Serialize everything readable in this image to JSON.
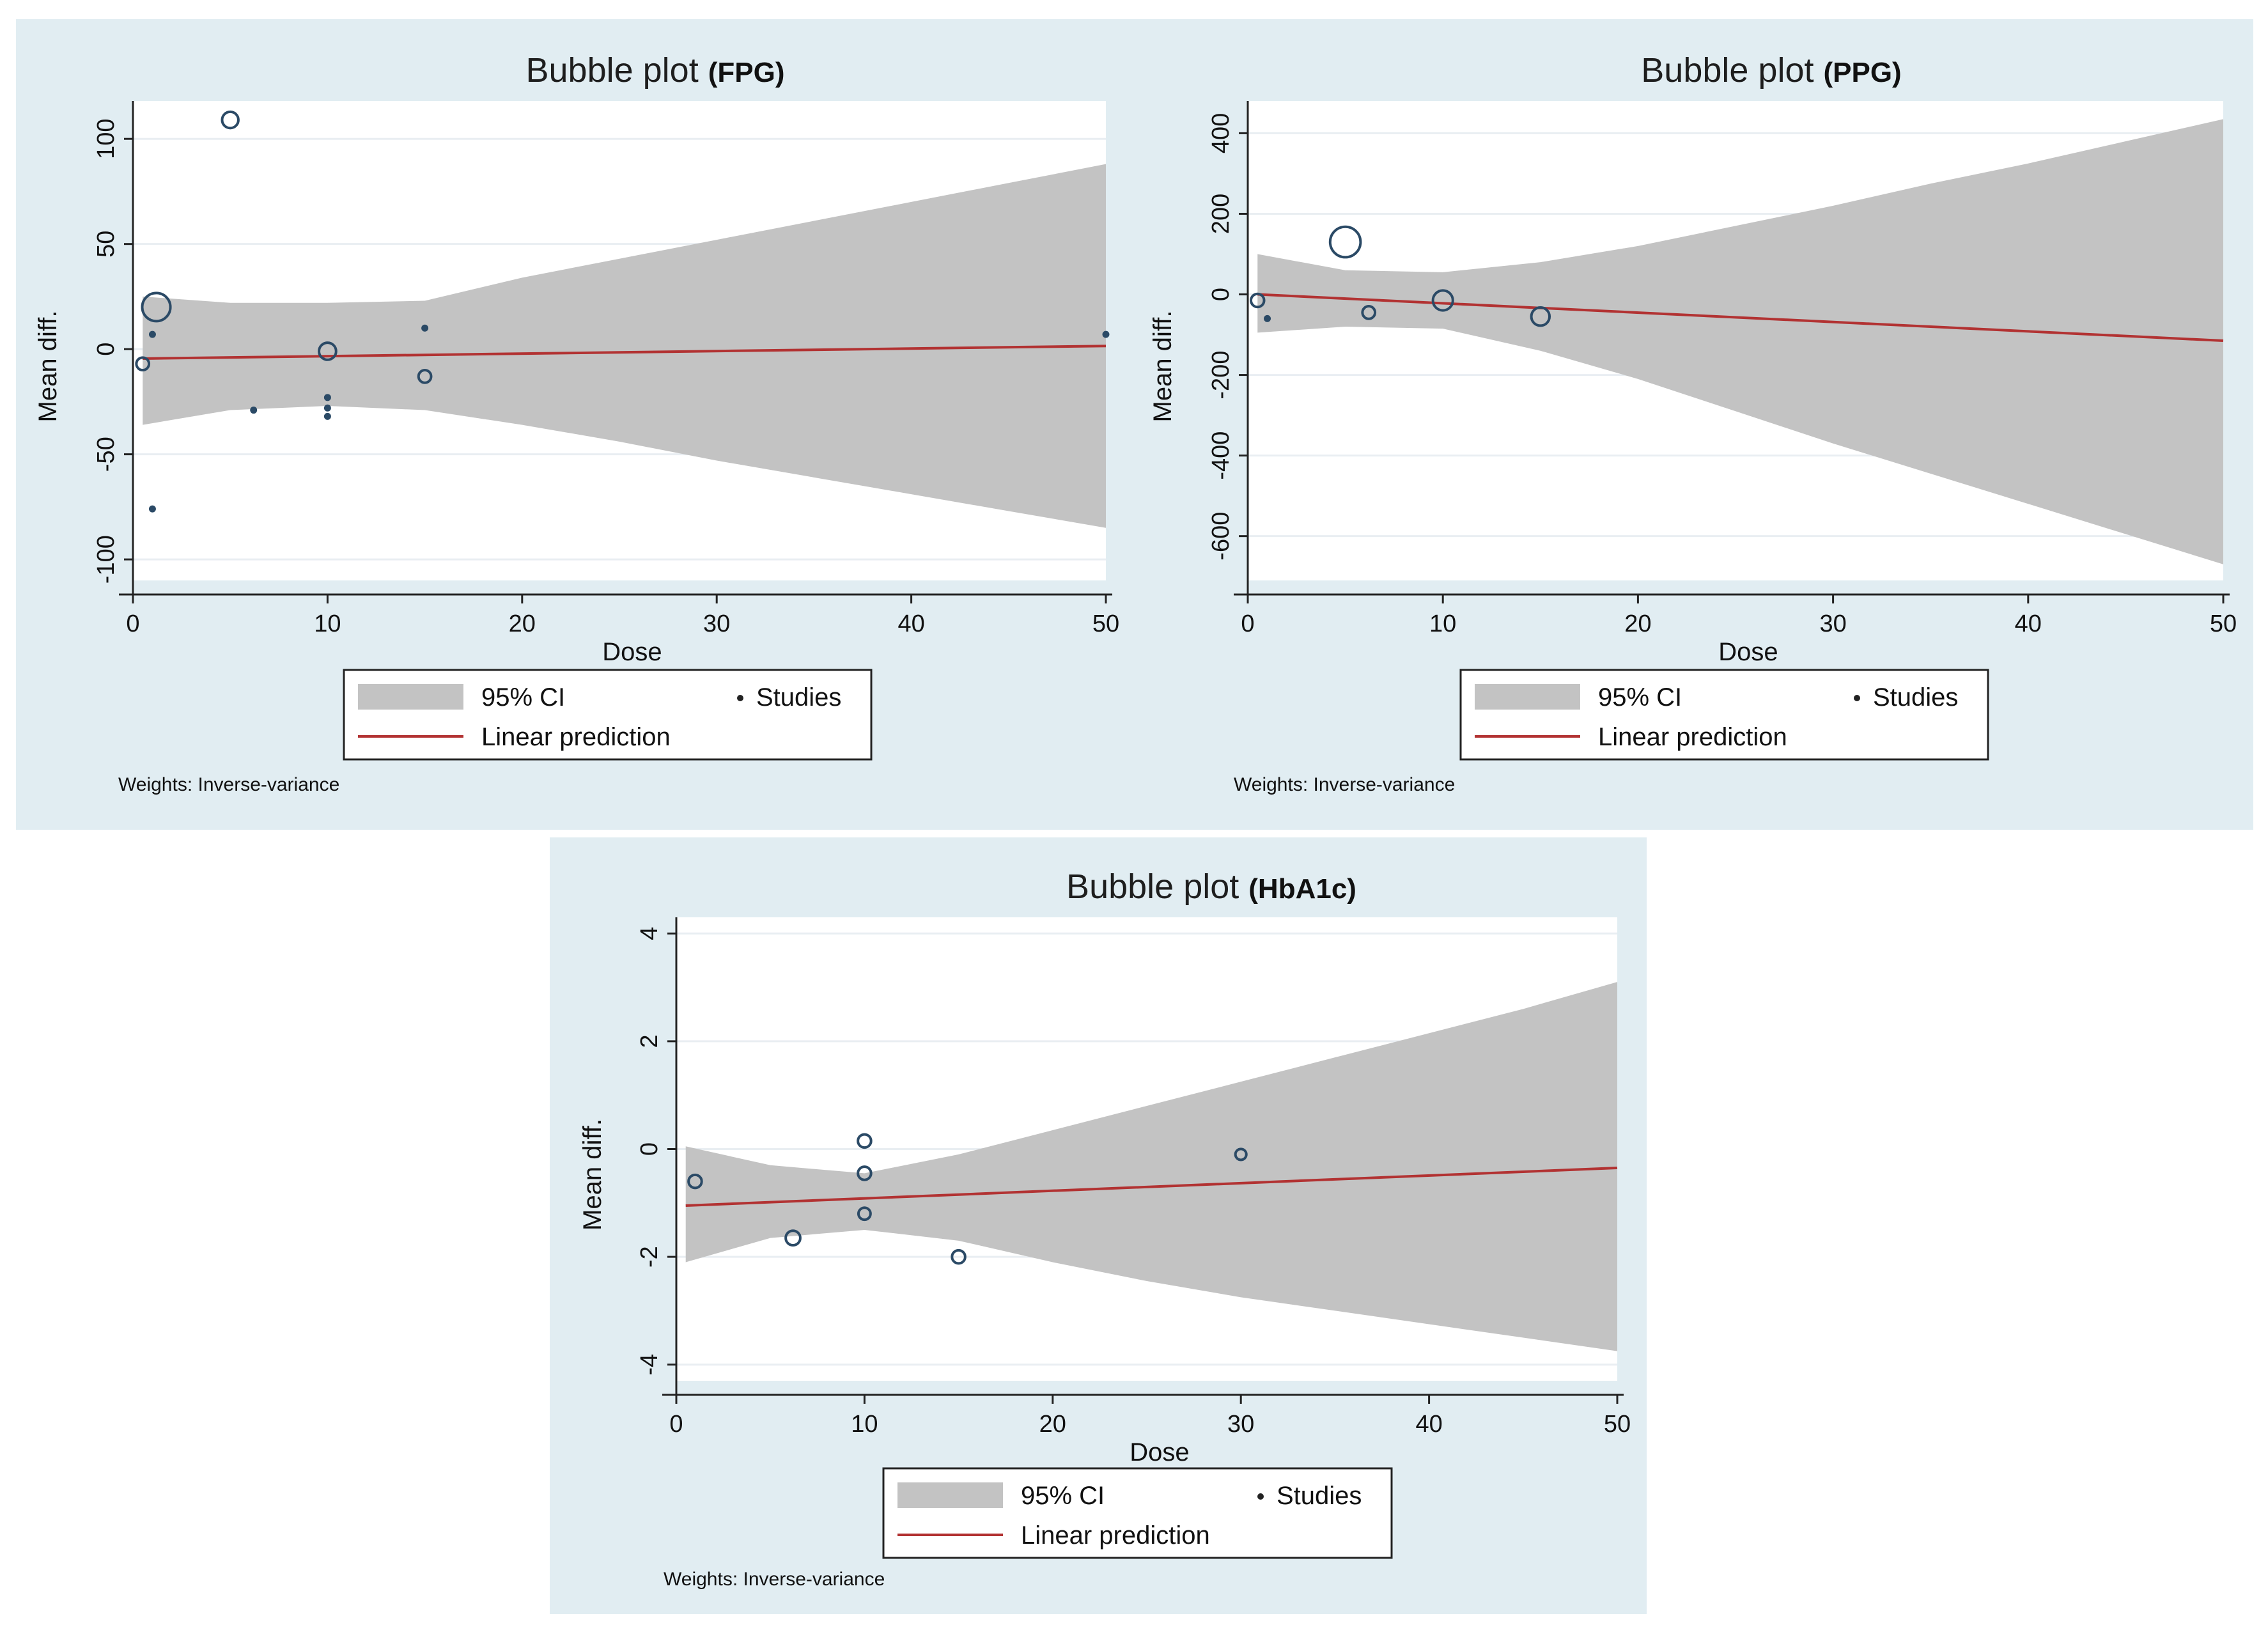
{
  "figure": {
    "colors": {
      "panel_bg": "#e1edf2",
      "plot_bg": "#ffffff",
      "ci_band": "#c3c3c3",
      "fit_line": "#b23232",
      "bubble_stroke": "#2b4a66",
      "axis": "#222222",
      "grid": "#e9eef2"
    }
  },
  "chart_data": [
    {
      "id": "fpg",
      "type": "scatter",
      "title": "Bubble plot",
      "title_suffix": "(FPG)",
      "xlabel": "Dose",
      "ylabel": "Mean diff.",
      "xlim": [
        0,
        50
      ],
      "ylim": [
        -110,
        118
      ],
      "xticks": [
        0,
        10,
        20,
        30,
        40,
        50
      ],
      "yticks": [
        -100,
        -50,
        0,
        50,
        100
      ],
      "ytick_labels": [
        "-100",
        "-50",
        "0",
        "50",
        "100"
      ],
      "legend": {
        "ci": "95% CI",
        "studies": "Studies",
        "line": "Linear prediction",
        "position": "bottom"
      },
      "note": "Weights: Inverse-variance",
      "fit": {
        "x0": 0.5,
        "y0": -4.5,
        "x1": 50,
        "y1": 1.5
      },
      "ci_band": {
        "x": [
          0.5,
          5,
          10,
          15,
          20,
          25,
          30,
          35,
          40,
          45,
          50
        ],
        "lower": [
          -36,
          -29,
          -27,
          -29,
          -36,
          -44,
          -53,
          -61,
          -69,
          -77,
          -85
        ],
        "upper": [
          25,
          22,
          22,
          23,
          34,
          43,
          52,
          61,
          70,
          79,
          88
        ]
      },
      "points": [
        {
          "x": 1.2,
          "y": 20,
          "w": 6
        },
        {
          "x": 5,
          "y": 109,
          "w": 2
        },
        {
          "x": 10,
          "y": -1,
          "w": 2.2
        },
        {
          "x": 0.5,
          "y": -7,
          "w": 1.2
        },
        {
          "x": 1,
          "y": 7,
          "w": 0.5
        },
        {
          "x": 1,
          "y": -76,
          "w": 0.5
        },
        {
          "x": 6.2,
          "y": -29,
          "w": 0.6
        },
        {
          "x": 10,
          "y": -23,
          "w": 0.5
        },
        {
          "x": 10,
          "y": -28,
          "w": 0.5
        },
        {
          "x": 10,
          "y": -32,
          "w": 0.5
        },
        {
          "x": 15,
          "y": 10,
          "w": 0.6
        },
        {
          "x": 15,
          "y": -13,
          "w": 1.2
        },
        {
          "x": 50,
          "y": 7,
          "w": 0.5
        }
      ]
    },
    {
      "id": "ppg",
      "type": "scatter",
      "title": "Bubble plot",
      "title_suffix": "(PPG)",
      "xlabel": "Dose",
      "ylabel": "Mean diff.",
      "xlim": [
        0,
        50
      ],
      "ylim": [
        -710,
        480
      ],
      "xticks": [
        0,
        10,
        20,
        30,
        40,
        50
      ],
      "yticks": [
        -600,
        -400,
        -200,
        0,
        200,
        400
      ],
      "ytick_labels": [
        "-600",
        "-400",
        "-200",
        "0",
        "200",
        "400"
      ],
      "legend": {
        "ci": "95% CI",
        "studies": "Studies",
        "line": "Linear prediction",
        "position": "bottom"
      },
      "note": "Weights: Inverse-variance",
      "fit": {
        "x0": 0.5,
        "y0": 0,
        "x1": 50,
        "y1": -115
      },
      "ci_band": {
        "x": [
          0.5,
          5,
          10,
          15,
          20,
          25,
          30,
          35,
          40,
          45,
          50
        ],
        "lower": [
          -95,
          -80,
          -85,
          -140,
          -210,
          -290,
          -370,
          -445,
          -520,
          -595,
          -670
        ],
        "upper": [
          100,
          60,
          55,
          80,
          120,
          170,
          220,
          275,
          325,
          380,
          435
        ]
      },
      "points": [
        {
          "x": 5,
          "y": 130,
          "w": 7
        },
        {
          "x": 0.5,
          "y": -15,
          "w": 1.3
        },
        {
          "x": 1,
          "y": -60,
          "w": 0.7
        },
        {
          "x": 6.2,
          "y": -45,
          "w": 1.2
        },
        {
          "x": 10,
          "y": -15,
          "w": 3
        },
        {
          "x": 15,
          "y": -55,
          "w": 2.5
        }
      ]
    },
    {
      "id": "hba1c",
      "type": "scatter",
      "title": "Bubble plot",
      "title_suffix": "(HbA1c)",
      "xlabel": "Dose",
      "ylabel": "Mean diff.",
      "xlim": [
        0,
        50
      ],
      "ylim": [
        -4.3,
        4.3
      ],
      "xticks": [
        0,
        10,
        20,
        30,
        40,
        50
      ],
      "yticks": [
        -4,
        -2,
        0,
        2,
        4
      ],
      "ytick_labels": [
        "-4",
        "-2",
        "0",
        "2",
        "4"
      ],
      "legend": {
        "ci": "95% CI",
        "studies": "Studies",
        "line": "Linear prediction",
        "position": "bottom"
      },
      "note": "Weights: Inverse-variance",
      "fit": {
        "x0": 0.5,
        "y0": -1.05,
        "x1": 50,
        "y1": -0.35
      },
      "ci_band": {
        "x": [
          0.5,
          5,
          10,
          15,
          20,
          25,
          30,
          35,
          40,
          45,
          50
        ],
        "lower": [
          -2.1,
          -1.65,
          -1.5,
          -1.7,
          -2.1,
          -2.45,
          -2.75,
          -3.0,
          -3.25,
          -3.5,
          -3.75
        ],
        "upper": [
          0.05,
          -0.3,
          -0.45,
          -0.1,
          0.35,
          0.8,
          1.25,
          1.7,
          2.15,
          2.6,
          3.1
        ]
      },
      "points": [
        {
          "x": 1,
          "y": -0.6,
          "w": 1.3
        },
        {
          "x": 6.2,
          "y": -1.65,
          "w": 1.6
        },
        {
          "x": 10,
          "y": 0.15,
          "w": 1.3
        },
        {
          "x": 10,
          "y": -0.45,
          "w": 1.3
        },
        {
          "x": 10,
          "y": -1.2,
          "w": 1.1
        },
        {
          "x": 15,
          "y": -2.0,
          "w": 1.3
        },
        {
          "x": 30,
          "y": -0.1,
          "w": 0.9
        }
      ]
    }
  ]
}
